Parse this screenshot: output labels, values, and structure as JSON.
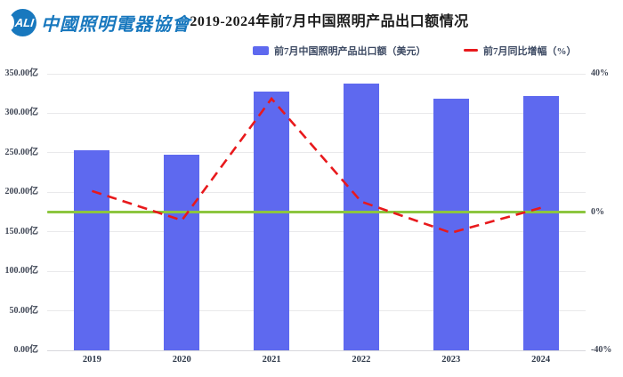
{
  "header": {
    "logo_abbr": "ALI",
    "logo_org": "中國照明電器協會",
    "title": "2019-2024年前7月中国照明产品出口额情况"
  },
  "legend": {
    "bar_label": "前7月中国照明产品出口额（美元）",
    "line_label": "前7月同比增幅（%）"
  },
  "chart_data": {
    "type": "bar",
    "title": "2019-2024年前7月中国照明产品出口额情况",
    "categories": [
      "2019",
      "2020",
      "2021",
      "2022",
      "2023",
      "2024"
    ],
    "series": [
      {
        "name": "前7月中国照明产品出口额（美元）",
        "type": "bar",
        "unit": "亿美元",
        "axis": "left",
        "values": [
          253.4,
          247.5,
          328.0,
          338.0,
          318.0,
          321.5
        ]
      },
      {
        "name": "前7月同比增幅（%）",
        "type": "line",
        "unit": "%",
        "axis": "right",
        "dashed": true,
        "values": [
          6.1,
          -2.4,
          32.8,
          3.0,
          -6.0,
          1.2
        ]
      }
    ],
    "left_axis": {
      "min": 0,
      "max": 350,
      "step": 50,
      "ticks": [
        "350.00亿",
        "300.00亿",
        "250.00亿",
        "200.00亿",
        "150.00亿",
        "100.00亿",
        "50.00亿",
        "0.00亿"
      ]
    },
    "right_axis": {
      "min": -40,
      "max": 40,
      "ticks": [
        "40%",
        "0%",
        "-40%"
      ],
      "tick_values": [
        40,
        0,
        -40
      ]
    },
    "reference_line": {
      "value": 0,
      "axis": "right"
    },
    "grid": true,
    "legend_position": "top",
    "colors": {
      "bar": "#5E69EF",
      "line": "#E8191C",
      "reference": "#8CC63F",
      "grid": "#E9E9EB"
    }
  }
}
